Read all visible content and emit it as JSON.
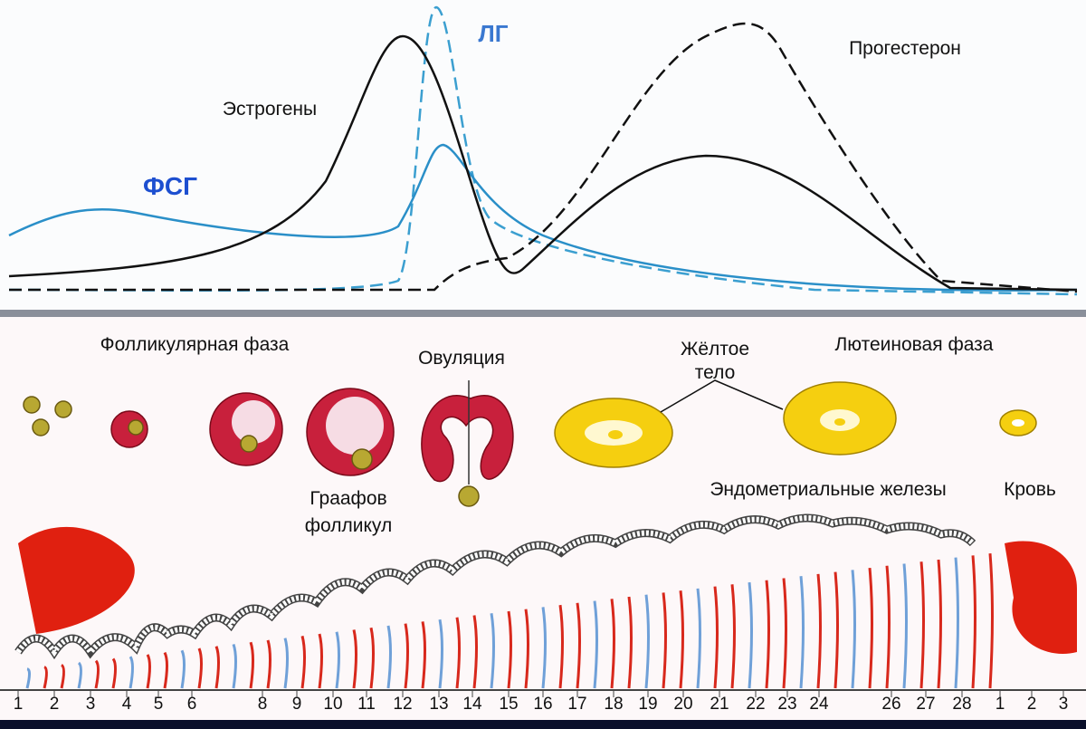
{
  "hormone_chart": {
    "lh_label": "ЛГ",
    "progesterone_label": "Прогестерон",
    "estrogen_label": "Эстрогены",
    "fsh_label": "ФСГ"
  },
  "phases": {
    "follicular": "Фолликулярная фаза",
    "ovulation": "Овуляция",
    "corpus_luteum": [
      "Жёлтое",
      "тело"
    ],
    "luteal": "Лютеиновая фаза",
    "graafian_follicle": [
      "Граафов",
      "фолликул"
    ],
    "endometrial_glands": "Эндометриальные железы",
    "blood": "Кровь"
  },
  "days": [
    "1",
    "2",
    "3",
    "4",
    "5",
    "6",
    "8",
    "9",
    "10",
    "11",
    "12",
    "13",
    "14",
    "15",
    "16",
    "17",
    "18",
    "19",
    "20",
    "21",
    "22",
    "23",
    "24",
    "26",
    "27",
    "28",
    "1",
    "2",
    "3"
  ]
}
